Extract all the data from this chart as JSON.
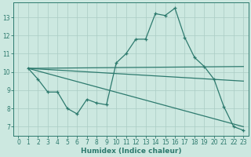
{
  "xlabel": "Humidex (Indice chaleur)",
  "bg_color": "#cce8e0",
  "line_color": "#2d7a6e",
  "grid_color": "#aaccc4",
  "xlim": [
    -0.5,
    23.5
  ],
  "ylim": [
    6.5,
    13.8
  ],
  "yticks": [
    7,
    8,
    9,
    10,
    11,
    12,
    13
  ],
  "xticks": [
    0,
    1,
    2,
    3,
    4,
    5,
    6,
    7,
    8,
    9,
    10,
    11,
    12,
    13,
    14,
    15,
    16,
    17,
    18,
    19,
    20,
    21,
    22,
    23
  ],
  "x_jagged": [
    1,
    2,
    3,
    4,
    5,
    6,
    7,
    8,
    9,
    10,
    11,
    12,
    13,
    14,
    15,
    16,
    17,
    18,
    19,
    20,
    21,
    22,
    23
  ],
  "y_jagged": [
    10.2,
    9.6,
    8.9,
    8.9,
    8.0,
    7.7,
    8.5,
    8.3,
    8.2,
    10.5,
    11.0,
    11.8,
    11.8,
    13.2,
    13.1,
    13.5,
    11.9,
    10.8,
    10.3,
    9.6,
    8.1,
    7.0,
    6.8
  ],
  "smooth_lines": [
    {
      "x": [
        1,
        23
      ],
      "y": [
        10.2,
        10.3
      ]
    },
    {
      "x": [
        1,
        23
      ],
      "y": [
        10.2,
        9.6
      ]
    },
    {
      "x": [
        1,
        23
      ],
      "y": [
        10.2,
        7.0
      ]
    }
  ]
}
